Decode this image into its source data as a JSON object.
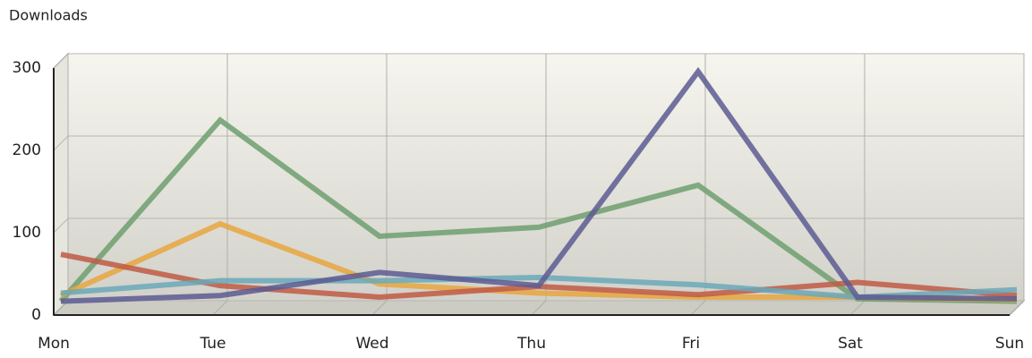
{
  "chart_data": {
    "type": "line",
    "title": "Downloads",
    "categories": [
      "Mon",
      "Tue",
      "Wed",
      "Thu",
      "Fri",
      "Sat",
      "Sun"
    ],
    "series": [
      {
        "color": "#6e9f6e",
        "values": [
          8,
          228,
          87,
          98,
          149,
          11,
          8
        ]
      },
      {
        "color": "#e8a63e",
        "values": [
          15,
          102,
          29,
          18,
          13,
          13,
          10
        ]
      },
      {
        "color": "#bf5a44",
        "values": [
          65,
          27,
          13,
          26,
          16,
          31,
          15
        ]
      },
      {
        "color": "#6aa8b8",
        "values": [
          18,
          33,
          33,
          37,
          28,
          13,
          22
        ]
      },
      {
        "color": "#5c5a92",
        "values": [
          8,
          15,
          43,
          27,
          287,
          13,
          11
        ]
      }
    ],
    "ylim": [
      0,
      300
    ],
    "yticks": [
      0,
      100,
      200,
      300
    ],
    "grid": true
  }
}
